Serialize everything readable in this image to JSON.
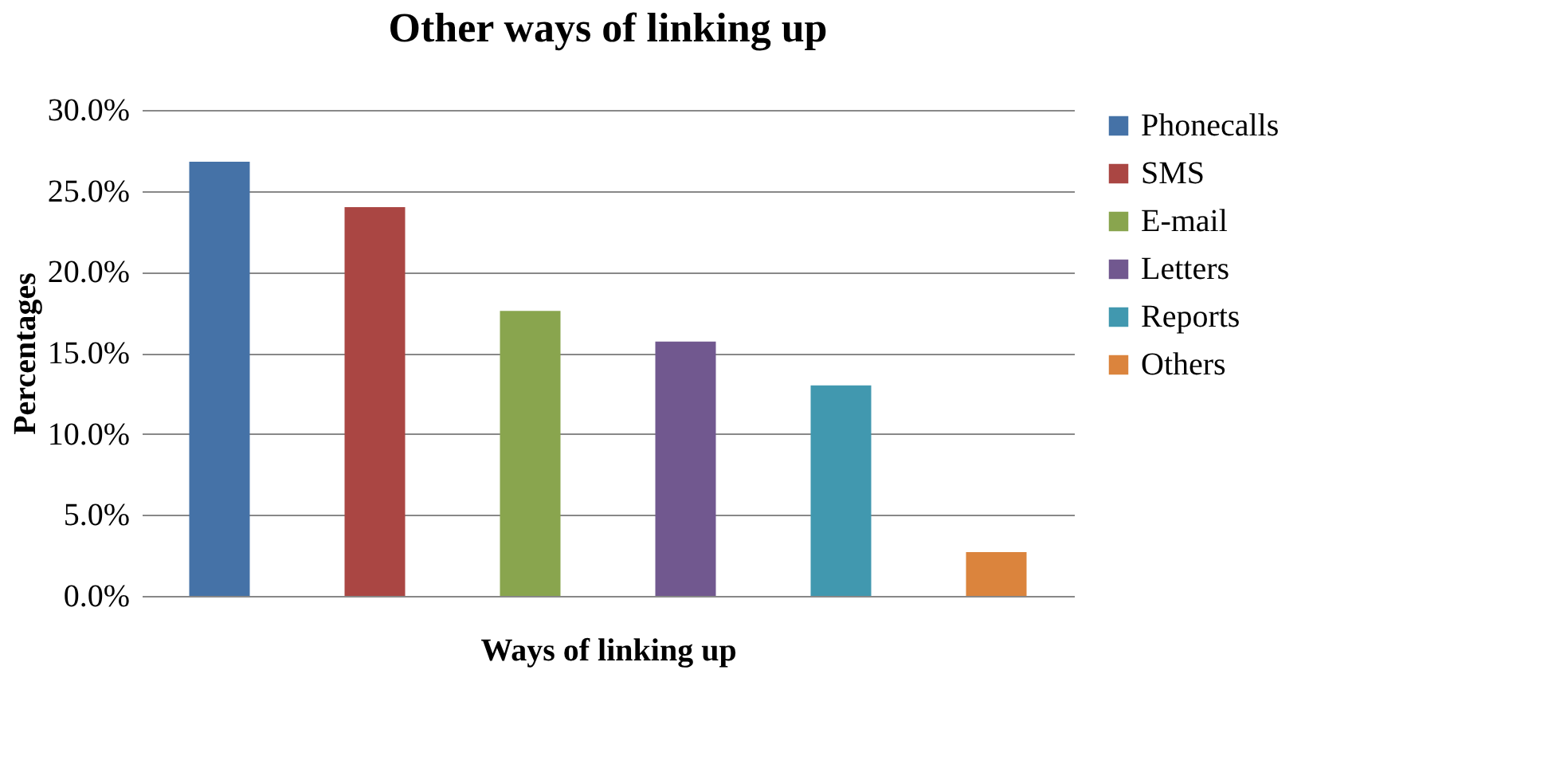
{
  "chart_data": {
    "type": "bar",
    "title": "Other ways of linking up",
    "xlabel": "Ways of linking up",
    "ylabel": "Percentages",
    "categories": [
      null,
      null,
      null,
      null,
      null,
      null
    ],
    "series": [
      {
        "name": "Phonecalls",
        "color": "#4572a7",
        "values": [
          26.8,
          null,
          null,
          null,
          null,
          null
        ]
      },
      {
        "name": "SMS",
        "color": "#aa4643",
        "values": [
          null,
          24.0,
          null,
          null,
          null,
          null
        ]
      },
      {
        "name": "E-mail",
        "color": "#89a54e",
        "values": [
          null,
          null,
          17.6,
          null,
          null,
          null
        ]
      },
      {
        "name": "Letters",
        "color": "#71588f",
        "values": [
          null,
          null,
          null,
          15.7,
          null,
          null
        ]
      },
      {
        "name": "Reports",
        "color": "#4198af",
        "values": [
          null,
          null,
          null,
          null,
          13.0,
          null
        ]
      },
      {
        "name": "Others",
        "color": "#db843d",
        "values": [
          null,
          null,
          null,
          null,
          null,
          2.7
        ]
      }
    ],
    "ylim": [
      0,
      30
    ],
    "yticks": [
      {
        "value": 0,
        "label": "0.0%"
      },
      {
        "value": 5,
        "label": "5.0%"
      },
      {
        "value": 10,
        "label": "10.0%"
      },
      {
        "value": 15,
        "label": "15.0%"
      },
      {
        "value": 20,
        "label": "20.0%"
      },
      {
        "value": 25,
        "label": "25.0%"
      },
      {
        "value": 30,
        "label": "30.0%"
      }
    ],
    "grid": "y",
    "legend": "right"
  }
}
